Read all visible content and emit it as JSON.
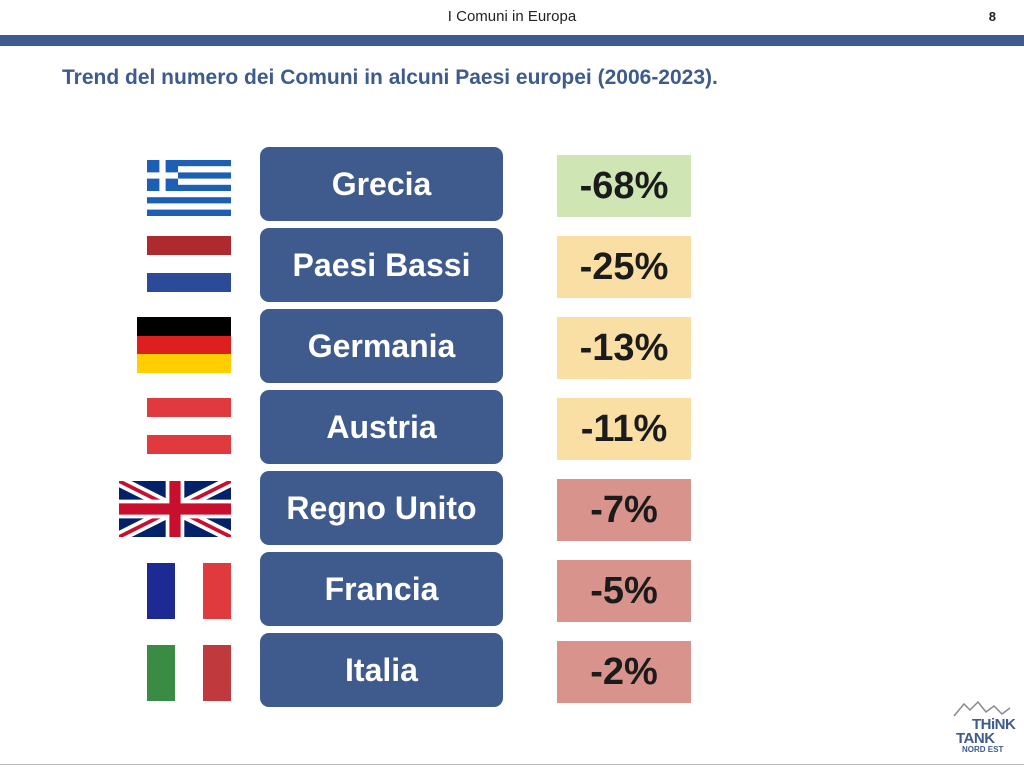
{
  "header": {
    "title": "I Comuni in Europa",
    "page_number": "8"
  },
  "slide": {
    "title": "Trend del numero dei Comuni in alcuni Paesi europei (2006-2023)."
  },
  "countries": [
    {
      "name": "Grecia",
      "change": "-68%",
      "color": "#cfe5b4",
      "flag_icon": "greece-flag-icon"
    },
    {
      "name": "Paesi Bassi",
      "change": "-25%",
      "color": "#f9dfa3",
      "flag_icon": "netherlands-flag-icon"
    },
    {
      "name": "Germania",
      "change": "-13%",
      "color": "#f9dfa3",
      "flag_icon": "germany-flag-icon"
    },
    {
      "name": "Austria",
      "change": "-11%",
      "color": "#f9dfa3",
      "flag_icon": "austria-flag-icon"
    },
    {
      "name": "Regno Unito",
      "change": "-7%",
      "color": "#d9938d",
      "flag_icon": "uk-flag-icon"
    },
    {
      "name": "Francia",
      "change": "-5%",
      "color": "#d9938d",
      "flag_icon": "france-flag-icon"
    },
    {
      "name": "Italia",
      "change": "-2%",
      "color": "#d9938d",
      "flag_icon": "italy-flag-icon"
    }
  ],
  "logo": {
    "line1": "THiNK",
    "line2": "TANK",
    "line3": "NORD EST",
    "color": "#3d5b8c"
  }
}
